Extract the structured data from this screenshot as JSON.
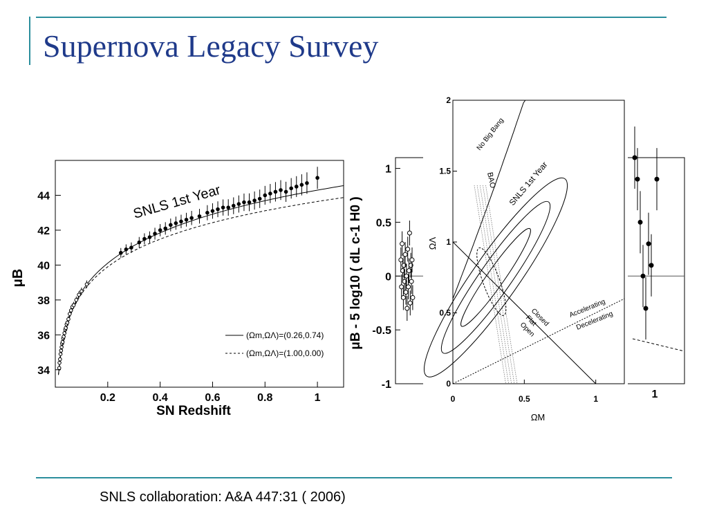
{
  "slide": {
    "title": "Supernova Legacy Survey",
    "citation": "SNLS collaboration: A&A 447:31 ( 2006)",
    "accent_color": "#2a8e9c",
    "title_color": "#1f3a8a"
  },
  "chart_data": [
    {
      "type": "scatter",
      "name": "hubble-diagram",
      "annotation": "SNLS 1st Year",
      "xlabel": "SN Redshift",
      "ylabel": "μB",
      "xlim": [
        0,
        1.1
      ],
      "ylim": [
        33,
        46
      ],
      "xticks": [
        "0.2",
        "0.4",
        "0.6",
        "0.8",
        "1"
      ],
      "yticks": [
        "34",
        "36",
        "38",
        "40",
        "42",
        "44"
      ],
      "legend_position": "bottom-right",
      "series": [
        {
          "name": "(Ωm,ΩΛ)=(0.26,0.74)",
          "style": "solid",
          "Om": 0.26,
          "OL": 0.74
        },
        {
          "name": "(Ωm,ΩΛ)=(1.00,0.00)",
          "style": "dashed",
          "Om": 1.0,
          "OL": 0.0
        }
      ],
      "points": [
        [
          0.015,
          34.1
        ],
        [
          0.016,
          34.4
        ],
        [
          0.018,
          34.6
        ],
        [
          0.02,
          34.9
        ],
        [
          0.022,
          35.1
        ],
        [
          0.024,
          35.3
        ],
        [
          0.026,
          35.5
        ],
        [
          0.028,
          35.6
        ],
        [
          0.03,
          35.8
        ],
        [
          0.032,
          35.9
        ],
        [
          0.035,
          36.1
        ],
        [
          0.038,
          36.3
        ],
        [
          0.04,
          36.4
        ],
        [
          0.043,
          36.6
        ],
        [
          0.046,
          36.7
        ],
        [
          0.05,
          36.9
        ],
        [
          0.055,
          37.2
        ],
        [
          0.06,
          37.4
        ],
        [
          0.065,
          37.6
        ],
        [
          0.07,
          37.7
        ],
        [
          0.08,
          38.0
        ],
        [
          0.09,
          38.3
        ],
        [
          0.1,
          38.5
        ],
        [
          0.12,
          38.9
        ],
        [
          0.25,
          40.7
        ],
        [
          0.27,
          40.9
        ],
        [
          0.29,
          41.0
        ],
        [
          0.32,
          41.3
        ],
        [
          0.34,
          41.5
        ],
        [
          0.36,
          41.6
        ],
        [
          0.38,
          41.8
        ],
        [
          0.4,
          42.0
        ],
        [
          0.42,
          42.1
        ],
        [
          0.44,
          42.3
        ],
        [
          0.46,
          42.4
        ],
        [
          0.48,
          42.5
        ],
        [
          0.5,
          42.6
        ],
        [
          0.52,
          42.7
        ],
        [
          0.55,
          42.8
        ],
        [
          0.58,
          43.0
        ],
        [
          0.6,
          43.1
        ],
        [
          0.62,
          43.2
        ],
        [
          0.64,
          43.3
        ],
        [
          0.66,
          43.3
        ],
        [
          0.68,
          43.4
        ],
        [
          0.7,
          43.5
        ],
        [
          0.72,
          43.6
        ],
        [
          0.74,
          43.6
        ],
        [
          0.76,
          43.7
        ],
        [
          0.78,
          43.8
        ],
        [
          0.8,
          44.0
        ],
        [
          0.82,
          44.1
        ],
        [
          0.84,
          44.2
        ],
        [
          0.86,
          44.3
        ],
        [
          0.88,
          44.2
        ],
        [
          0.9,
          44.4
        ],
        [
          0.92,
          44.5
        ],
        [
          0.94,
          44.6
        ],
        [
          0.96,
          44.7
        ],
        [
          1.0,
          45.0
        ]
      ]
    },
    {
      "type": "scatter",
      "name": "hubble-residuals",
      "ylabel": "μB - 5 log10 ( dL c-1 H0 )",
      "ylim": [
        -1,
        1.1
      ],
      "yticks": [
        "1",
        "0.5",
        "0",
        "-0.5",
        "-1"
      ],
      "xticks_visible": [
        "1"
      ],
      "left_points": [
        [
          0.02,
          0.15
        ],
        [
          0.03,
          -0.1
        ],
        [
          0.04,
          0.3
        ],
        [
          0.05,
          0.05
        ],
        [
          0.06,
          -0.2
        ],
        [
          0.07,
          0.1
        ],
        [
          0.08,
          -0.05
        ],
        [
          0.09,
          0.2
        ],
        [
          0.1,
          -0.15
        ],
        [
          0.11,
          0.0
        ],
        [
          0.12,
          -0.3
        ],
        [
          0.13,
          0.25
        ],
        [
          0.14,
          -0.1
        ],
        [
          0.15,
          0.05
        ],
        [
          0.16,
          0.4
        ],
        [
          0.17,
          -0.25
        ],
        [
          0.18,
          0.1
        ],
        [
          0.19,
          -0.05
        ],
        [
          0.2,
          0.15
        ],
        [
          0.21,
          -0.2
        ]
      ],
      "right_points": [
        [
          0.94,
          1.1
        ],
        [
          0.95,
          0.9
        ],
        [
          0.96,
          0.5
        ],
        [
          0.97,
          0.0
        ],
        [
          0.98,
          -0.3
        ],
        [
          0.99,
          0.3
        ],
        [
          1.0,
          0.1
        ],
        [
          1.02,
          0.9
        ]
      ]
    },
    {
      "type": "contour",
      "name": "omega-plane",
      "xlabel": "ΩM",
      "ylabel": "ΩΛ",
      "xlim": [
        0,
        1.2
      ],
      "ylim": [
        0,
        2
      ],
      "xticks": [
        "0",
        "0.5",
        "1"
      ],
      "yticks": [
        "0",
        "0.5",
        "1",
        "1.5",
        "2"
      ],
      "annotations": [
        "No Big Bang",
        "BAO",
        "SNLS 1st Year",
        "Closed",
        "Flat",
        "Open",
        "Accelerating",
        "Decelerating"
      ],
      "snls_contours": [
        {
          "center": [
            0.3,
            0.75
          ],
          "semi_axes": [
            0.16,
            0.85
          ],
          "angle_deg": -35
        },
        {
          "center": [
            0.3,
            0.75
          ],
          "semi_axes": [
            0.11,
            0.65
          ],
          "angle_deg": -35
        },
        {
          "center": [
            0.3,
            0.75
          ],
          "semi_axes": [
            0.06,
            0.42
          ],
          "angle_deg": -35
        }
      ],
      "bao_band": {
        "om_center": 0.27,
        "om_width": 0.04
      }
    }
  ]
}
